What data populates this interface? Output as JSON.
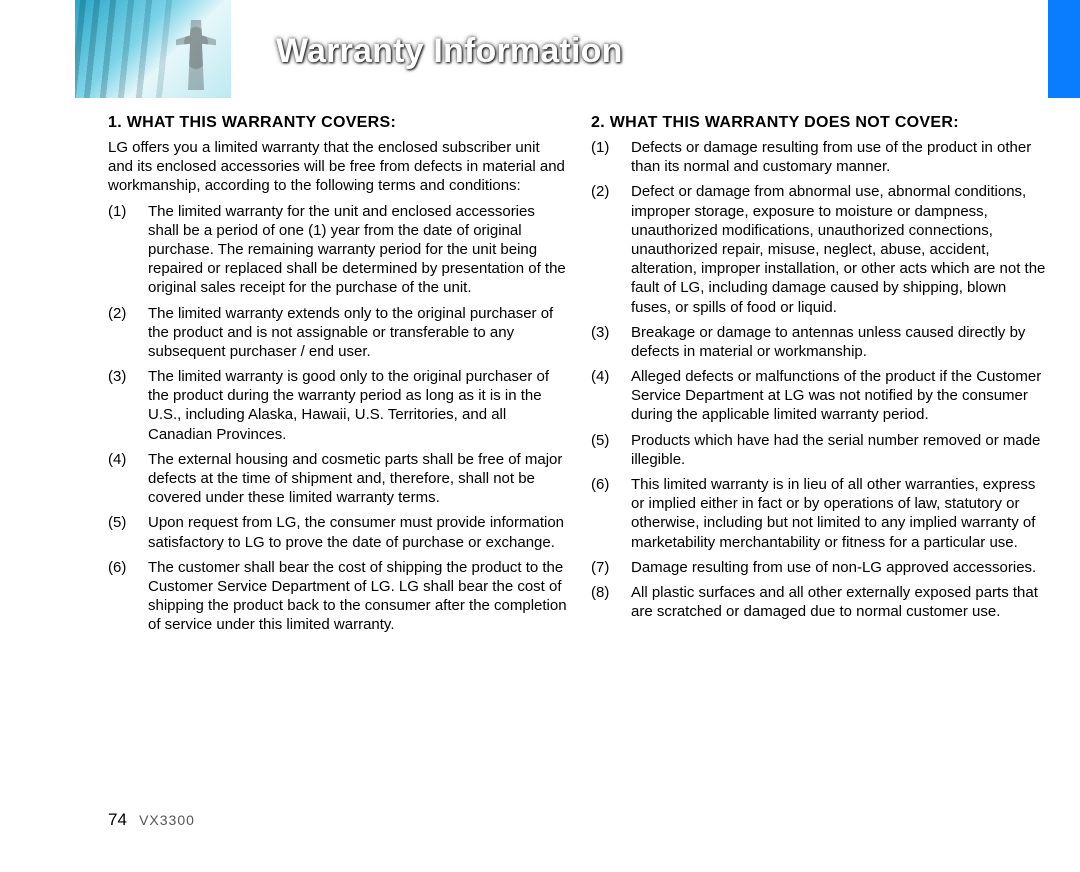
{
  "header": {
    "title": "Warranty Information",
    "accent_color": "#0a7dff"
  },
  "left": {
    "heading": "1. WHAT THIS WARRANTY COVERS:",
    "intro": "LG offers you a limited warranty that the enclosed subscriber unit and its enclosed accessories will be free from defects in material and workmanship, according to the following terms and conditions:",
    "items": [
      {
        "n": "(1)",
        "t": "The limited warranty for the unit and enclosed accessories shall be a period of one (1) year from the date of original purchase. The remaining warranty period for the unit being repaired or replaced shall be determined by presentation of the original sales receipt for the purchase of the unit."
      },
      {
        "n": "(2)",
        "t": "The limited warranty extends only to the original purchaser of the product and is not assignable or transferable to any subsequent purchaser / end user."
      },
      {
        "n": "(3)",
        "t": "The limited warranty is good only to the original purchaser of the product during the warranty period as long as it is in the U.S., including Alaska, Hawaii, U.S. Territories, and all Canadian Provinces."
      },
      {
        "n": "(4)",
        "t": "The external housing and cosmetic parts shall be free of major defects at the time of shipment and, therefore, shall not be covered under these limited warranty terms."
      },
      {
        "n": "(5)",
        "t": "Upon request from LG, the consumer must provide information satisfactory to LG to prove the date of purchase or exchange."
      },
      {
        "n": "(6)",
        "t": "The customer shall bear the cost of shipping the product to the Customer Service Department of LG. LG shall bear the cost of shipping the product back to the consumer after the completion of service under this limited warranty."
      }
    ]
  },
  "right": {
    "heading": "2. WHAT THIS WARRANTY DOES NOT COVER:",
    "items": [
      {
        "n": "(1)",
        "t": "Defects or damage resulting from use of the product in other than its normal and customary manner."
      },
      {
        "n": "(2)",
        "t": "Defect or damage from abnormal use, abnormal conditions, improper storage, exposure to moisture or dampness, unauthorized modifications, unauthorized connections, unauthorized repair, misuse, neglect, abuse, accident, alteration, improper installation, or other acts which are not the fault of LG, including damage caused by shipping, blown fuses, or spills of food or liquid."
      },
      {
        "n": "(3)",
        "t": "Breakage or damage to antennas unless caused directly by defects in material or workmanship."
      },
      {
        "n": "(4)",
        "t": "Alleged defects or malfunctions of the product if the Customer Service Department at LG was not notified by the consumer during the applicable limited warranty period."
      },
      {
        "n": "(5)",
        "t": "Products which have had the serial number removed or made illegible."
      },
      {
        "n": "(6)",
        "t": "This limited warranty is in lieu of all other warranties, express or implied either in fact or by operations of law, statutory or otherwise, including but not limited to any implied warranty of marketability merchantability or fitness for a particular use."
      },
      {
        "n": "(7)",
        "t": "Damage resulting from use of non-LG approved accessories."
      },
      {
        "n": "(8)",
        "t": "All plastic surfaces and all other externally exposed parts that are scratched or damaged due to normal customer use."
      }
    ]
  },
  "footer": {
    "page_number": "74",
    "model": "VX3300"
  }
}
